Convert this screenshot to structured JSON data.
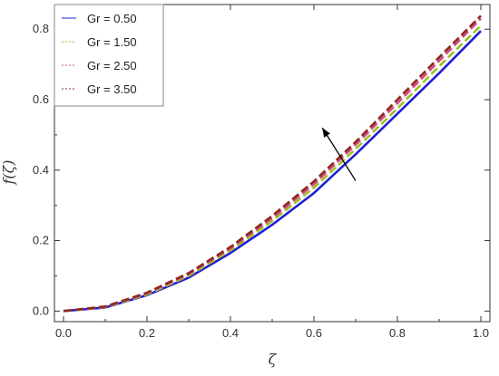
{
  "chart_data": {
    "type": "line",
    "title": "",
    "xlabel": "ζ",
    "ylabel": "f(ζ)",
    "xlim": [
      0.0,
      1.0
    ],
    "ylim": [
      -0.03,
      0.87
    ],
    "xticks": [
      "0.0",
      "0.2",
      "0.4",
      "0.6",
      "0.8",
      "1.0"
    ],
    "yticks": [
      "0.0",
      "0.2",
      "0.4",
      "0.6",
      "0.8"
    ],
    "legend_position": "top-left",
    "x": [
      0.0,
      0.1,
      0.2,
      0.3,
      0.4,
      0.5,
      0.6,
      0.7,
      0.8,
      0.9,
      1.0
    ],
    "series": [
      {
        "name": "Gr = 0.50",
        "color": "#1f1fd6",
        "style": "solid",
        "values": [
          0.0,
          0.01,
          0.045,
          0.095,
          0.165,
          0.245,
          0.335,
          0.445,
          0.56,
          0.675,
          0.795
        ]
      },
      {
        "name": "Gr = 1.50",
        "color": "#9bc21e",
        "style": "dashed",
        "values": [
          0.0,
          0.011,
          0.047,
          0.1,
          0.172,
          0.256,
          0.35,
          0.46,
          0.575,
          0.695,
          0.81
        ]
      },
      {
        "name": "Gr = 2.50",
        "color": "#d44a8a",
        "style": "dashed",
        "values": [
          0.0,
          0.012,
          0.05,
          0.105,
          0.178,
          0.264,
          0.36,
          0.472,
          0.59,
          0.71,
          0.83
        ]
      },
      {
        "name": "Gr = 3.50",
        "color": "#8c2a1e",
        "style": "dashed",
        "values": [
          0.0,
          0.013,
          0.052,
          0.108,
          0.182,
          0.27,
          0.368,
          0.48,
          0.6,
          0.72,
          0.838
        ]
      }
    ],
    "annotation": {
      "type": "arrow",
      "from": [
        0.7,
        0.37
      ],
      "to": [
        0.62,
        0.52
      ]
    }
  }
}
